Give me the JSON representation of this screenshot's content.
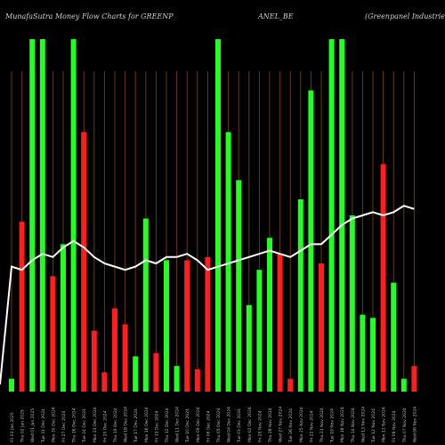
{
  "header": {
    "left": "MunafaSutra  Money Flow  Charts for GREENP",
    "middle": "ANEL_BE",
    "right": "(Greenpanel Industries Lt"
  },
  "colors": {
    "up": "#22ff22",
    "down": "#ff1e1e",
    "line": "#ffffff",
    "grid": "#6b3a0c",
    "background": "#000000"
  },
  "chart_data": {
    "type": "bar",
    "title": "MunafaSutra  Money Flow  Charts for GREENP ANEL_BE (Greenpanel Industries Lt",
    "ylim": [
      0,
      100
    ],
    "grid": "vertical",
    "bars": [
      {
        "label": "Fri 03 Jan 2025",
        "v": 4,
        "c": "up"
      },
      {
        "label": "Thu 02 Jan 2025",
        "v": 53,
        "c": "down"
      },
      {
        "label": "Wed 01 Jan 2025",
        "v": 110,
        "c": "up"
      },
      {
        "label": "Tue 31 Dec 2024",
        "v": 110,
        "c": "up"
      },
      {
        "label": "Mon 30 Dec 2024",
        "v": 36,
        "c": "down"
      },
      {
        "label": "Fri 27 Dec 2024",
        "v": 46,
        "c": "up"
      },
      {
        "label": "Thu 26 Dec 2024",
        "v": 110,
        "c": "up"
      },
      {
        "label": "Tue 24 Dec 2024",
        "v": 81,
        "c": "down"
      },
      {
        "label": "Mon 23 Dec 2024",
        "v": 19,
        "c": "down"
      },
      {
        "label": "Fri 20 Dec 2024",
        "v": 6,
        "c": "down"
      },
      {
        "label": "Thu 19 Dec 2024",
        "v": 26,
        "c": "down"
      },
      {
        "label": "Wed 18 Dec 2024",
        "v": 21,
        "c": "down"
      },
      {
        "label": "Tue 17 Dec 2024",
        "v": 11,
        "c": "up"
      },
      {
        "label": "Mon 16 Dec 2024",
        "v": 54,
        "c": "up"
      },
      {
        "label": "Fri 13 Dec 2024",
        "v": 12,
        "c": "down"
      },
      {
        "label": "Thu 12 Dec 2024",
        "v": 41,
        "c": "up"
      },
      {
        "label": "Wed 11 Dec 2024",
        "v": 8,
        "c": "up"
      },
      {
        "label": "Tue 10 Dec 2024",
        "v": 41,
        "c": "down"
      },
      {
        "label": "Mon 09 Dec 2024",
        "v": 7,
        "c": "down"
      },
      {
        "label": "Fri 06 Dec 2024",
        "v": 42,
        "c": "down"
      },
      {
        "label": "Thu 05 Dec 2024",
        "v": 110,
        "c": "up"
      },
      {
        "label": "Wed 04 Dec 2024",
        "v": 81,
        "c": "up"
      },
      {
        "label": "Tue 03 Dec 2024",
        "v": 66,
        "c": "up"
      },
      {
        "label": "Mon 02 Dec 2024",
        "v": 27,
        "c": "up"
      },
      {
        "label": "Fri 29 Nov 2024",
        "v": 38,
        "c": "up"
      },
      {
        "label": "Thu 28 Nov 2024",
        "v": 48,
        "c": "up"
      },
      {
        "label": "Wed 27 Nov 2024",
        "v": 43,
        "c": "down"
      },
      {
        "label": "Tue 26 Nov 2024",
        "v": 4,
        "c": "down"
      },
      {
        "label": "Mon 25 Nov 2024",
        "v": 60,
        "c": "up"
      },
      {
        "label": "Fri 22 Nov 2024",
        "v": 94,
        "c": "up"
      },
      {
        "label": "Thu 21 Nov 2024",
        "v": 40,
        "c": "down"
      },
      {
        "label": "Tue 19 Nov 2024",
        "v": 110,
        "c": "up"
      },
      {
        "label": "Mon 18 Nov 2024",
        "v": 110,
        "c": "up"
      },
      {
        "label": "Thu 14 Nov 2024",
        "v": 55,
        "c": "up"
      },
      {
        "label": "Wed 13 Nov 2024",
        "v": 24,
        "c": "up"
      },
      {
        "label": "Tue 12 Nov 2024",
        "v": 23,
        "c": "up"
      },
      {
        "label": "Mon 11 Nov 2024",
        "v": 71,
        "c": "down"
      },
      {
        "label": "Fri 08 Nov 2024",
        "v": 34,
        "c": "up"
      },
      {
        "label": "Thu 07 Nov 2024",
        "v": 4,
        "c": "up"
      },
      {
        "label": "Wed 06 Nov 2024",
        "v": 8,
        "c": "down"
      }
    ],
    "line": [
      39,
      38,
      41,
      43,
      42,
      45,
      47,
      45,
      42,
      40,
      39,
      38,
      39,
      41,
      40,
      42,
      42,
      43,
      41,
      38,
      39,
      40,
      41,
      42,
      43,
      44,
      43,
      42,
      44,
      46,
      46,
      49,
      52,
      54,
      55,
      56,
      55,
      56,
      58,
      57
    ]
  }
}
